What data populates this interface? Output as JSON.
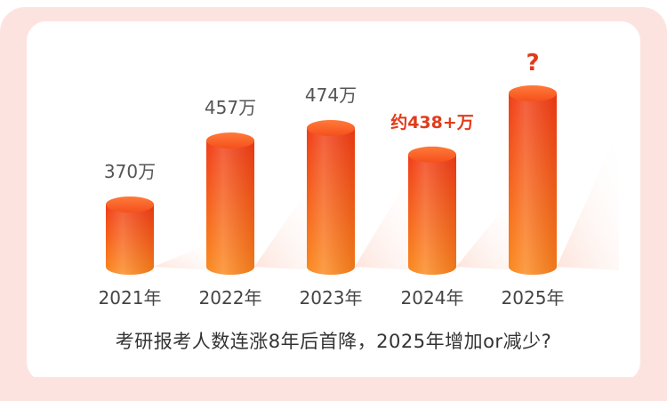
{
  "chart_data": {
    "type": "bar",
    "categories": [
      "2021年",
      "2022年",
      "2023年",
      "2024年",
      "2025年"
    ],
    "values": [
      370,
      457,
      474,
      438,
      null
    ],
    "unit": "万",
    "data_labels": [
      "370万",
      "457万",
      "474万",
      "约438+万",
      "?"
    ],
    "highlight_labels": [
      false,
      false,
      false,
      true,
      true
    ],
    "colors": {
      "bar_top": "#f13c16",
      "bar_bottom": "#fb8a1e",
      "label_normal": "#555555",
      "label_highlight": "#e23a1a"
    }
  },
  "caption": "考研报考人数连涨8年后首降，2025年增加or减少?"
}
